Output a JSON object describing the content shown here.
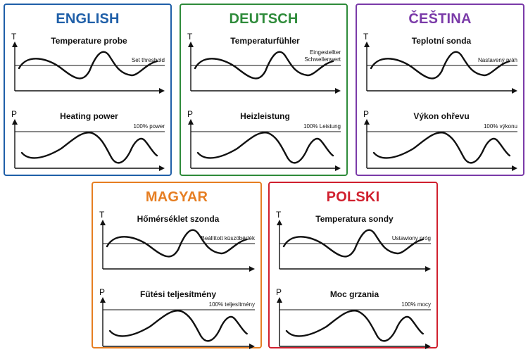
{
  "panels": [
    {
      "id": "english",
      "language": "ENGLISH",
      "color": "#1f5fa8",
      "temperature_title": "Temperature probe",
      "temperature_axis": "T",
      "threshold_label": [
        "Set threshold"
      ],
      "power_title": "Heating power",
      "power_axis": "P",
      "power_label": "100% power"
    },
    {
      "id": "deutsch",
      "language": "DEUTSCH",
      "color": "#2e8b3a",
      "temperature_title": "Temperaturfühler",
      "temperature_axis": "T",
      "threshold_label": [
        "Eingestellter",
        "Schwellenwert"
      ],
      "power_title": "Heizleistung",
      "power_axis": "P",
      "power_label": "100% Leistung"
    },
    {
      "id": "cestina",
      "language": "ČEŠTINA",
      "color": "#7a3aa8",
      "temperature_title": "Teplotní sonda",
      "temperature_axis": "T",
      "threshold_label": [
        "Nastavený práh"
      ],
      "power_title": "Výkon ohřevu",
      "power_axis": "P",
      "power_label": "100% výkonu"
    },
    {
      "id": "magyar",
      "language": "MAGYAR",
      "color": "#e67e22",
      "temperature_title": "Hőmérséklet szonda",
      "temperature_axis": "T",
      "threshold_label": [
        "Beállított küszöbérték"
      ],
      "power_title": "Fűtési teljesítmény",
      "power_axis": "P",
      "power_label": "100% teljesítmény"
    },
    {
      "id": "polski",
      "language": "POLSKI",
      "color": "#d0202e",
      "temperature_title": "Temperatura sondy",
      "temperature_axis": "T",
      "threshold_label": [
        "Ustawiony próg"
      ],
      "power_title": "Moc grzania",
      "power_axis": "P",
      "power_label": "100% mocy"
    }
  ]
}
